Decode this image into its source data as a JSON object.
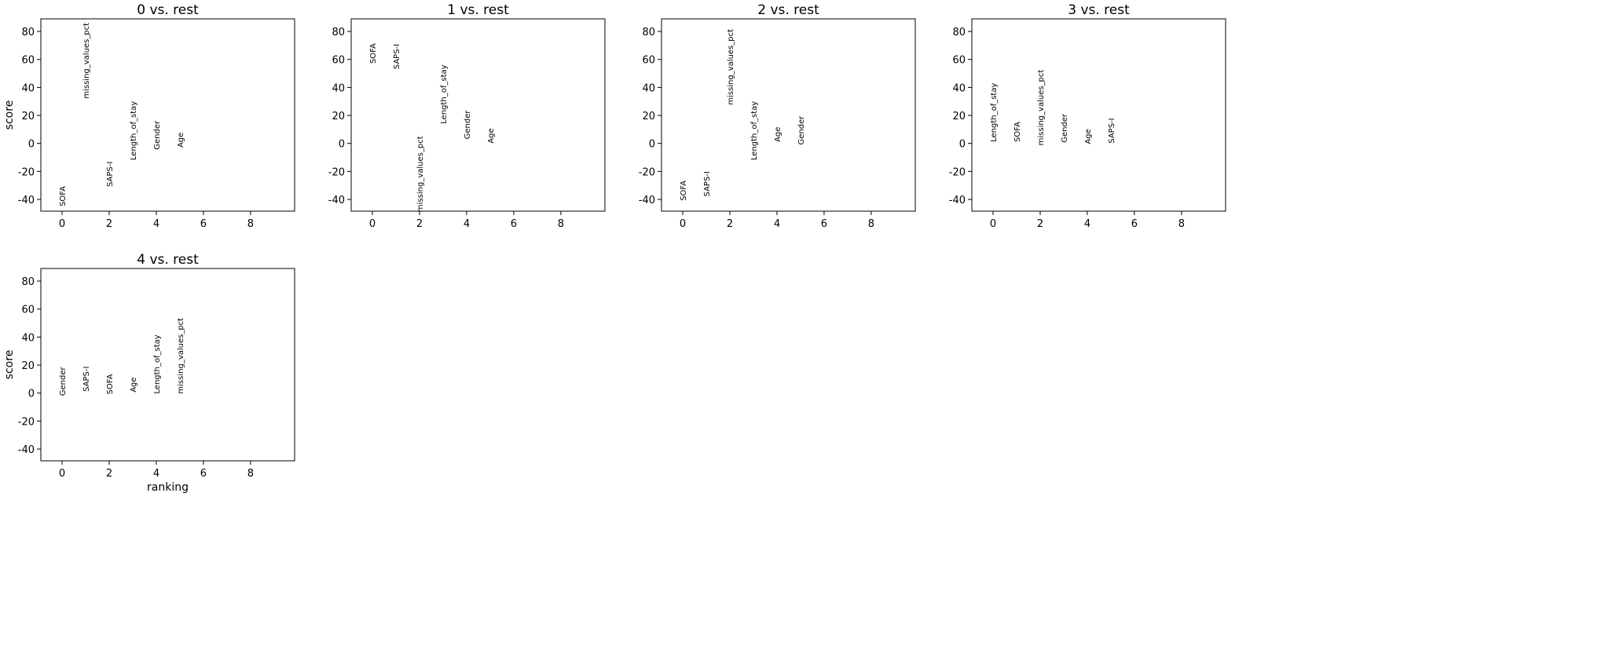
{
  "chart_data": [
    {
      "type": "text",
      "title": "0 vs. rest",
      "y_label": "score",
      "categories": [
        "SOFA",
        "missing_values_pct",
        "SAPS-I",
        "Length_of_stay",
        "Gender",
        "Age"
      ],
      "x": [
        0,
        1,
        2,
        3,
        4,
        5
      ],
      "values": [
        -45,
        32,
        -31,
        -12,
        -4.5,
        -3
      ],
      "xlim": [
        -0.9,
        9.87
      ],
      "ylim": [
        -48.4,
        89
      ],
      "xticks": [
        0,
        2,
        4,
        6,
        8
      ],
      "yticks": [
        -40,
        -20,
        0,
        20,
        40,
        60,
        80
      ]
    },
    {
      "type": "text",
      "title": "1 vs. rest",
      "categories": [
        "SOFA",
        "SAPS-I",
        "missing_values_pct",
        "Length_of_stay",
        "Gender",
        "Age"
      ],
      "x": [
        0,
        1,
        2,
        3,
        4,
        5
      ],
      "values": [
        57,
        53,
        -49,
        14,
        3,
        0
      ],
      "xlim": [
        -0.9,
        9.87
      ],
      "ylim": [
        -48.4,
        89
      ],
      "xticks": [
        0,
        2,
        4,
        6,
        8
      ],
      "yticks": [
        -40,
        -20,
        0,
        20,
        40,
        60,
        80
      ]
    },
    {
      "type": "text",
      "title": "2 vs. rest",
      "categories": [
        "SOFA",
        "SAPS-I",
        "missing_values_pct",
        "Length_of_stay",
        "Age",
        "Gender"
      ],
      "x": [
        0,
        1,
        2,
        3,
        4,
        5
      ],
      "values": [
        -41,
        -38,
        27.5,
        -12,
        1,
        -1
      ],
      "xlim": [
        -0.9,
        9.87
      ],
      "ylim": [
        -48.4,
        89
      ],
      "xticks": [
        0,
        2,
        4,
        6,
        8
      ],
      "yticks": [
        -40,
        -20,
        0,
        20,
        40,
        60,
        80
      ]
    },
    {
      "type": "text",
      "title": "3 vs. rest",
      "categories": [
        "Length_of_stay",
        "SOFA",
        "missing_values_pct",
        "Gender",
        "Age",
        "SAPS-I"
      ],
      "x": [
        0,
        1,
        2,
        3,
        4,
        5
      ],
      "values": [
        1,
        1,
        -1.5,
        0.5,
        -0.5,
        0
      ],
      "xlim": [
        -0.9,
        9.87
      ],
      "ylim": [
        -48.4,
        89
      ],
      "xticks": [
        0,
        2,
        4,
        6,
        8
      ],
      "yticks": [
        -40,
        -20,
        0,
        20,
        40,
        60,
        80
      ]
    },
    {
      "type": "text",
      "title": "4 vs. rest",
      "y_label": "score",
      "x_label": "ranking",
      "categories": [
        "Gender",
        "SAPS-I",
        "SOFA",
        "Age",
        "Length_of_stay",
        "missing_values_pct"
      ],
      "x": [
        0,
        1,
        2,
        3,
        4,
        5
      ],
      "values": [
        -2,
        1,
        -1,
        0.5,
        -0.5,
        -0.5
      ],
      "xlim": [
        -0.9,
        9.87
      ],
      "ylim": [
        -48.4,
        89
      ],
      "xticks": [
        0,
        2,
        4,
        6,
        8
      ],
      "yticks": [
        -40,
        -20,
        0,
        20,
        40,
        60,
        80
      ]
    }
  ]
}
